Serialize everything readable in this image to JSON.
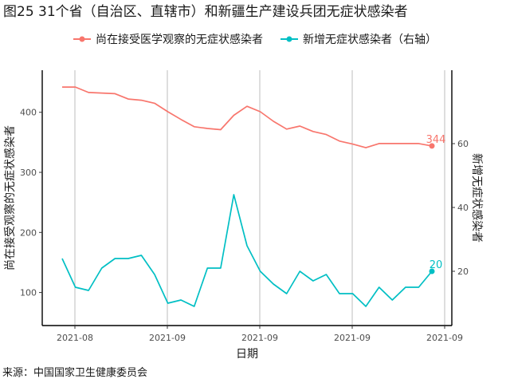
{
  "title": "图25 31个省（自治区、直辖市）和新疆生产建设兵团无症状感染者",
  "source": "来源：中国国家卫生健康委员会",
  "legend": {
    "series_left": "尚在接受医学观察的无症状感染者",
    "series_right": "新增无症状感染者（右轴）"
  },
  "colors": {
    "left": "#F8766D",
    "right": "#00BFC4"
  },
  "chart_data": {
    "type": "line",
    "xlabel": "日期",
    "ylabel_left": "尚在接受观察的无症状感染者",
    "ylabel_right": "新增无症状感染者",
    "x_tick_labels": [
      "2021-08",
      "2021-09",
      "2021-09",
      "2021-09",
      "2021-09"
    ],
    "y_left_ticks": [
      100,
      200,
      300,
      400
    ],
    "y_right_ticks": [
      20,
      40,
      60
    ],
    "y_left_range": [
      45,
      470
    ],
    "y_right_range": [
      3,
      83
    ],
    "series": [
      {
        "name": "尚在接受医学观察的无症状感染者",
        "axis": "left",
        "values": [
          442,
          442,
          433,
          432,
          431,
          422,
          420,
          415,
          401,
          388,
          376,
          373,
          371,
          395,
          410,
          401,
          385,
          372,
          377,
          368,
          363,
          352,
          347,
          341,
          348,
          348,
          348,
          348,
          344
        ],
        "end_label": "344"
      },
      {
        "name": "新增无症状感染者（右轴）",
        "axis": "right",
        "values": [
          24,
          15,
          14,
          21,
          24,
          24,
          25,
          19,
          10,
          11,
          9,
          21,
          21,
          44,
          28,
          20,
          16,
          13,
          20,
          17,
          19,
          13,
          13,
          9,
          15,
          11,
          15,
          15,
          20
        ],
        "end_label": "20"
      }
    ],
    "grid": "vertical"
  }
}
